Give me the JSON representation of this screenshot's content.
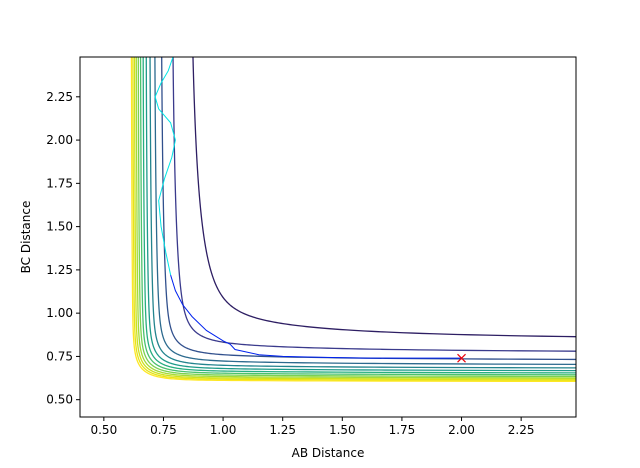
{
  "chart_data": {
    "type": "line",
    "subtype": "contour",
    "title": "",
    "xlabel": "AB Distance",
    "ylabel": "BC Distance",
    "xlim": [
      0.4,
      2.48
    ],
    "ylim": [
      0.4,
      2.48
    ],
    "xticks": [
      "0.50",
      "0.75",
      "1.00",
      "1.25",
      "1.50",
      "1.75",
      "2.00",
      "2.25"
    ],
    "yticks": [
      "0.50",
      "0.75",
      "1.00",
      "1.25",
      "1.50",
      "1.75",
      "2.00",
      "2.25"
    ],
    "grid": false,
    "legend": "none",
    "contour_levels": [
      {
        "c": 0.02,
        "color": "#2d1e63"
      },
      {
        "c": 0.05,
        "color": "#3a3a8c"
      },
      {
        "c": 0.09,
        "color": "#31508d"
      },
      {
        "c": 0.13,
        "color": "#2c6a8e"
      },
      {
        "c": 0.17,
        "color": "#23848e"
      },
      {
        "c": 0.21,
        "color": "#1e9b8a"
      },
      {
        "c": 0.25,
        "color": "#27ae80"
      },
      {
        "c": 0.29,
        "color": "#4ac16d"
      },
      {
        "c": 0.33,
        "color": "#7ad151"
      },
      {
        "c": 0.37,
        "color": "#a5db36"
      },
      {
        "c": 0.41,
        "color": "#cde11d"
      },
      {
        "c": 0.45,
        "color": "#e6e419"
      },
      {
        "c": 0.49,
        "color": "#fde725"
      }
    ],
    "series": [
      {
        "color": "#0022ee",
        "x": [
          2.0,
          1.8,
          1.6,
          1.4,
          1.25,
          1.15,
          1.05,
          1.03,
          1.0,
          0.93,
          0.87,
          0.83,
          0.8,
          0.78
        ],
        "y": [
          0.74,
          0.74,
          0.74,
          0.745,
          0.75,
          0.76,
          0.79,
          0.82,
          0.84,
          0.9,
          0.98,
          1.05,
          1.13,
          1.22
        ]
      },
      {
        "color": "#00e5e5",
        "x": [
          0.78,
          0.76,
          0.74,
          0.73,
          0.755,
          0.785,
          0.8,
          0.78,
          0.73,
          0.715,
          0.74,
          0.77,
          0.79,
          0.775
        ],
        "y": [
          1.22,
          1.35,
          1.5,
          1.65,
          1.78,
          1.9,
          2.0,
          2.1,
          2.18,
          2.25,
          2.33,
          2.4,
          2.48,
          2.48
        ]
      }
    ],
    "markers": [
      {
        "x": 2.0,
        "y": 0.74,
        "symbol": "x",
        "color": "#e8000b"
      }
    ]
  }
}
